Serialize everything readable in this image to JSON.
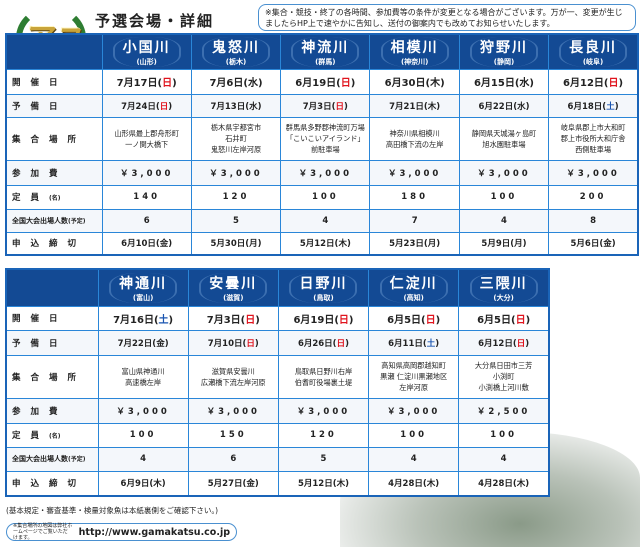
{
  "logo_text": "アユ",
  "title": "予選会場・詳細",
  "notice": "※集合・競技・終了の各時間、参加費等の条件が変更となる場合がございます。万が一、変更が生じましたらHP上で速やかに告知し、送付の御案内でも改めてお知らせいたします。",
  "row_labels": [
    "開催日",
    "予備日",
    "集合場所",
    "参加費",
    "定員",
    "全国大会出場人数"
  ],
  "row_label_suffix": {
    "capacity": "(名)",
    "qualifiers": "(予定)"
  },
  "deadline_label": "申込締切",
  "table1": [
    {
      "river": "小国川",
      "pref": "(山形)",
      "date": "7月17日(",
      "date_dow": "日",
      "date_dow_color": "red",
      "reserve": "7月24日(",
      "reserve_dow": "日",
      "reserve_dow_color": "red",
      "place": "山形県最上郡舟形町\n一ノ関大橋下",
      "fee": "￥3,000",
      "capacity": "140",
      "qualifiers": "6",
      "deadline": "6月10日(金)"
    },
    {
      "river": "鬼怒川",
      "pref": "(栃木)",
      "date": "7月6日(",
      "date_dow": "水",
      "date_dow_color": "black",
      "reserve": "7月13日(",
      "reserve_dow": "水",
      "reserve_dow_color": "black",
      "place": "栃木県宇都宮市\n石井町\n鬼怒川左岸河原",
      "fee": "￥3,000",
      "capacity": "120",
      "qualifiers": "5",
      "deadline": "5月30日(月)"
    },
    {
      "river": "神流川",
      "pref": "(群馬)",
      "date": "6月19日(",
      "date_dow": "日",
      "date_dow_color": "red",
      "reserve": "7月3日(",
      "reserve_dow": "日",
      "reserve_dow_color": "red",
      "place": "群馬県多野郡神流町万場\n「こいこいアイランド」\n前駐車場",
      "fee": "￥3,000",
      "capacity": "100",
      "qualifiers": "4",
      "deadline": "5月12日(木)"
    },
    {
      "river": "相模川",
      "pref": "(神奈川)",
      "date": "6月30日(",
      "date_dow": "木",
      "date_dow_color": "black",
      "reserve": "7月21日(",
      "reserve_dow": "木",
      "reserve_dow_color": "black",
      "place": "神奈川県相模川\n高田橋下流の左岸",
      "fee": "￥3,000",
      "capacity": "180",
      "qualifiers": "7",
      "deadline": "5月23日(月)"
    },
    {
      "river": "狩野川",
      "pref": "(静岡)",
      "date": "6月15日(",
      "date_dow": "水",
      "date_dow_color": "black",
      "reserve": "6月22日(",
      "reserve_dow": "水",
      "reserve_dow_color": "black",
      "place": "静岡県天城湯ヶ島町\n旭水園駐車場",
      "fee": "￥3,000",
      "capacity": "100",
      "qualifiers": "4",
      "deadline": "5月9日(月)"
    },
    {
      "river": "長良川",
      "pref": "(岐阜)",
      "date": "6月12日(",
      "date_dow": "日",
      "date_dow_color": "red",
      "reserve": "6月18日(",
      "reserve_dow": "土",
      "reserve_dow_color": "blue",
      "place": "岐阜県郡上市大和町\n郡上市役所大和庁舎\n西側駐車場",
      "fee": "￥3,000",
      "capacity": "200",
      "qualifiers": "8",
      "deadline": "5月6日(金)"
    }
  ],
  "table2": [
    {
      "river": "神通川",
      "pref": "(富山)",
      "date": "7月16日(",
      "date_dow": "土",
      "date_dow_color": "blue",
      "reserve": "7月22日(",
      "reserve_dow": "金",
      "reserve_dow_color": "black",
      "place": "富山県神通川\n高速橋左岸",
      "fee": "￥3,000",
      "capacity": "100",
      "qualifiers": "4",
      "deadline": "6月9日(木)"
    },
    {
      "river": "安曇川",
      "pref": "(滋賀)",
      "date": "7月3日(",
      "date_dow": "日",
      "date_dow_color": "red",
      "reserve": "7月10日(",
      "reserve_dow": "日",
      "reserve_dow_color": "red",
      "place": "滋賀県安曇川\n広瀬橋下流左岸河原",
      "fee": "￥3,000",
      "capacity": "150",
      "qualifiers": "6",
      "deadline": "5月27日(金)"
    },
    {
      "river": "日野川",
      "pref": "(鳥取)",
      "date": "6月19日(",
      "date_dow": "日",
      "date_dow_color": "red",
      "reserve": "6月26日(",
      "reserve_dow": "日",
      "reserve_dow_color": "red",
      "place": "鳥取県日野川右岸\n伯耆町役場裏土堤",
      "fee": "￥3,000",
      "capacity": "120",
      "qualifiers": "5",
      "deadline": "5月12日(木)"
    },
    {
      "river": "仁淀川",
      "pref": "(高知)",
      "date": "6月5日(",
      "date_dow": "日",
      "date_dow_color": "red",
      "reserve": "6月11日(",
      "reserve_dow": "土",
      "reserve_dow_color": "blue",
      "place": "高知県高岡郡越知町\n黒瀬 仁淀川黒瀬地区\n左岸河原",
      "fee": "￥3,000",
      "capacity": "100",
      "qualifiers": "4",
      "deadline": "4月28日(木)"
    },
    {
      "river": "三隈川",
      "pref": "(大分)",
      "date": "6月5日(",
      "date_dow": "日",
      "date_dow_color": "red",
      "reserve": "6月12日(",
      "reserve_dow": "日",
      "reserve_dow_color": "red",
      "place": "大分県日田市三芳\n小渕町\n小渕橋上河川敷",
      "fee": "￥2,500",
      "capacity": "100",
      "qualifiers": "4",
      "deadline": "4月28日(木)"
    }
  ],
  "footer_note": "(基本規定・審査基準・検量対象魚は本紙裏側をご確認下さい。)",
  "map_note": "※集合場所の地図は弊社ホームページでご覧いただけます。",
  "url": "http://www.gamakatsu.co.jp",
  "colors": {
    "header_blue": "#134a94",
    "border_blue": "#2a86d8",
    "sunday_red": "#e0141e",
    "saturday_blue": "#1a55b0"
  }
}
